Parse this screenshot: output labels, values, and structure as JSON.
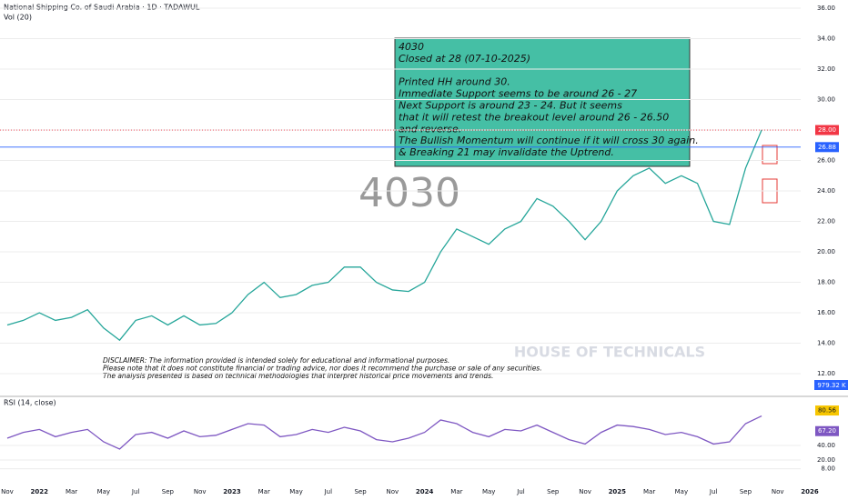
{
  "header": {
    "title": "National Shipping Co. of Saudi Arabia · 1D · TADAWUL",
    "volume_label": "Vol (20)",
    "watermark": "4030",
    "logo_text": "HOUSE OF TECHNICALS",
    "rsi_label": "RSI (14, close)",
    "volume_value": "979.32 K"
  },
  "annotation": {
    "lines": [
      "4030",
      "Closed at 28 (07-10-2025)",
      "",
      "Printed HH around 30.",
      "Immediate Support seems to be around 26 - 27",
      "Next Support is around 23 - 24. But it seems",
      "that it will retest the breakout level around 26 - 26.50",
      "and reverse.",
      "The  Bullish Momentum will continue if it will cross 30 again.",
      "& Breaking 21 may invalidate the Uptrend."
    ]
  },
  "disclaimer": [
    "DISCLAIMER: The information provided is intended solely for educational and informational purposes.",
    "Please note that it does not constitute financial or trading advice, nor does it recommend the purchase or sale of any securities.",
    "The analysis presented is based on technical methodologies that interpret historical price movements and trends."
  ],
  "chart_data": [
    {
      "type": "line",
      "categories": [
        "Nov",
        null,
        "2022",
        null,
        "Mar",
        null,
        "May",
        null,
        "Jul",
        null,
        "Sep",
        null,
        "Nov",
        null,
        "2023",
        null,
        "Mar",
        null,
        "May",
        null,
        "Jul",
        null,
        "Sep",
        null,
        "Nov",
        null,
        "2024",
        null,
        "Mar",
        null,
        "May",
        null,
        "Jul",
        null,
        "Sep",
        null,
        "Nov",
        null,
        "2025",
        null,
        "Mar",
        null,
        "May",
        null,
        "Jul",
        null,
        "Sep",
        null,
        "Nov",
        null,
        "2026"
      ],
      "series": [
        {
          "name": "Close",
          "color": "#26a69a",
          "values": [
            15.2,
            15.5,
            16,
            15.5,
            15.7,
            16.2,
            15,
            14.2,
            15.5,
            15.8,
            15.2,
            15.8,
            15.2,
            15.3,
            16,
            17.2,
            18,
            17,
            17.2,
            17.8,
            18,
            19,
            19,
            18,
            17.5,
            17.4,
            18,
            20,
            21.5,
            21,
            20.5,
            21.5,
            22,
            23.5,
            23,
            22,
            20.8,
            22,
            24,
            25,
            25.5,
            24.5,
            25,
            24.5,
            22,
            21.8,
            25.5,
            28,
            null,
            null,
            null
          ]
        }
      ],
      "ylim": [
        10.75,
        36.54
      ],
      "yticks": [
        {
          "value": 12,
          "label": "12.00"
        },
        {
          "value": 14,
          "label": "14.00"
        },
        {
          "value": 16,
          "label": "16.00"
        },
        {
          "value": 18,
          "label": "18.00"
        },
        {
          "value": 20,
          "label": "20.00"
        },
        {
          "value": 22,
          "label": "22.00"
        },
        {
          "value": 24,
          "label": "24.00"
        },
        {
          "value": 26,
          "label": "26.00"
        },
        {
          "value": 28,
          "label": "28.00"
        },
        {
          "value": 30,
          "label": "30.00"
        },
        {
          "value": 32,
          "label": "32.00"
        },
        {
          "value": 34,
          "label": "34.00"
        },
        {
          "value": 36,
          "label": "36.00"
        }
      ],
      "price_lines": [
        {
          "value": 28,
          "label": "28.00",
          "color": "#f23645"
        },
        {
          "value": 26.88,
          "label": "26.88",
          "color": "#2962ff"
        }
      ]
    },
    {
      "type": "line",
      "series": [
        {
          "name": "RSI",
          "color": "#7e57c2",
          "values": [
            50,
            58,
            62,
            52,
            58,
            62,
            45,
            35,
            55,
            58,
            50,
            60,
            52,
            54,
            62,
            70,
            68,
            52,
            55,
            62,
            58,
            65,
            60,
            48,
            45,
            50,
            58,
            75,
            70,
            58,
            52,
            62,
            60,
            68,
            58,
            48,
            42,
            58,
            68,
            66,
            62,
            55,
            58,
            52,
            42,
            45,
            70,
            80.56,
            null,
            null,
            null
          ]
        }
      ],
      "ylim": [
        -7.5,
        105
      ],
      "yticks": [
        {
          "value": 8,
          "label": "8.00"
        },
        {
          "value": 20,
          "label": "20.00"
        },
        {
          "value": 40,
          "label": "40.00"
        }
      ],
      "value_chips": [
        {
          "value": 80.56,
          "label": "80.56",
          "color": "#f7c600"
        },
        {
          "value": 67.2,
          "label": "67.20",
          "color": "#7e57c2"
        }
      ]
    }
  ]
}
